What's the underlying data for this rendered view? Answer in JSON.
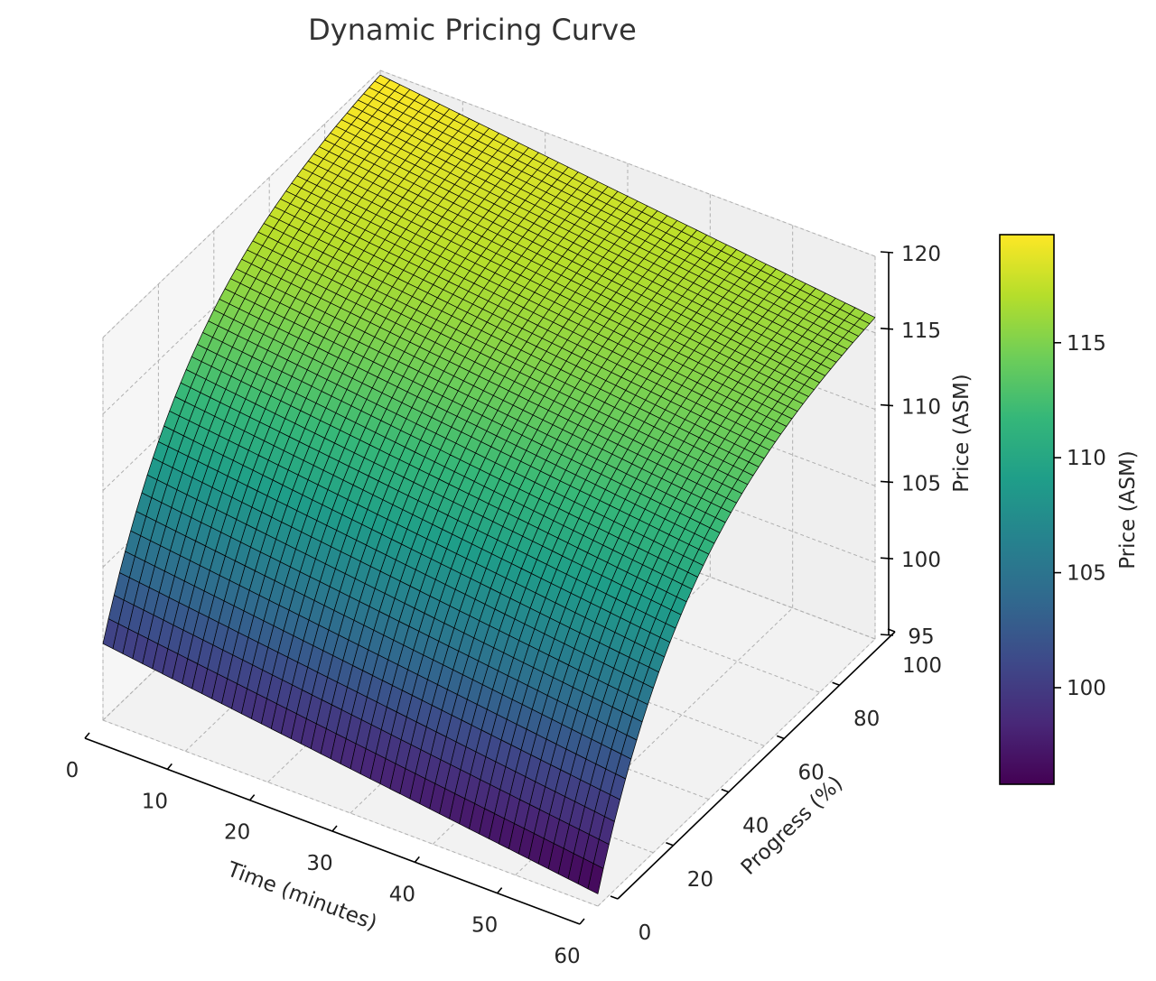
{
  "chart_data": {
    "type": "surface",
    "title": "Dynamic Pricing Curve",
    "xlabel": "Time (minutes)",
    "ylabel": "Progress (%)",
    "zlabel": "Price (ASM)",
    "colorbar_label": "Price (ASM)",
    "colormap": "viridis",
    "xlim": [
      0,
      60
    ],
    "ylim": [
      0,
      100
    ],
    "zlim": [
      95,
      120
    ],
    "x_ticks": [
      "0",
      "10",
      "20",
      "30",
      "40",
      "50",
      "60"
    ],
    "y_ticks": [
      "0",
      "20",
      "40",
      "60",
      "80",
      "100"
    ],
    "z_ticks": [
      "95",
      "100",
      "105",
      "110",
      "115",
      "120"
    ],
    "colorbar_ticks": [
      "100",
      "105",
      "110",
      "115"
    ],
    "colorbar_range": [
      95.8,
      119.7
    ],
    "grid": true,
    "grid_resolution": 50,
    "corner_prices": {
      "time0_progress0": 100.0,
      "time60_progress0": 95.8,
      "time0_progress100": 119.7,
      "time60_progress100": 115.0
    },
    "description_of_shape": "Price rises with progress (concave, steepest at low progress) and falls slightly with elapsed time"
  }
}
